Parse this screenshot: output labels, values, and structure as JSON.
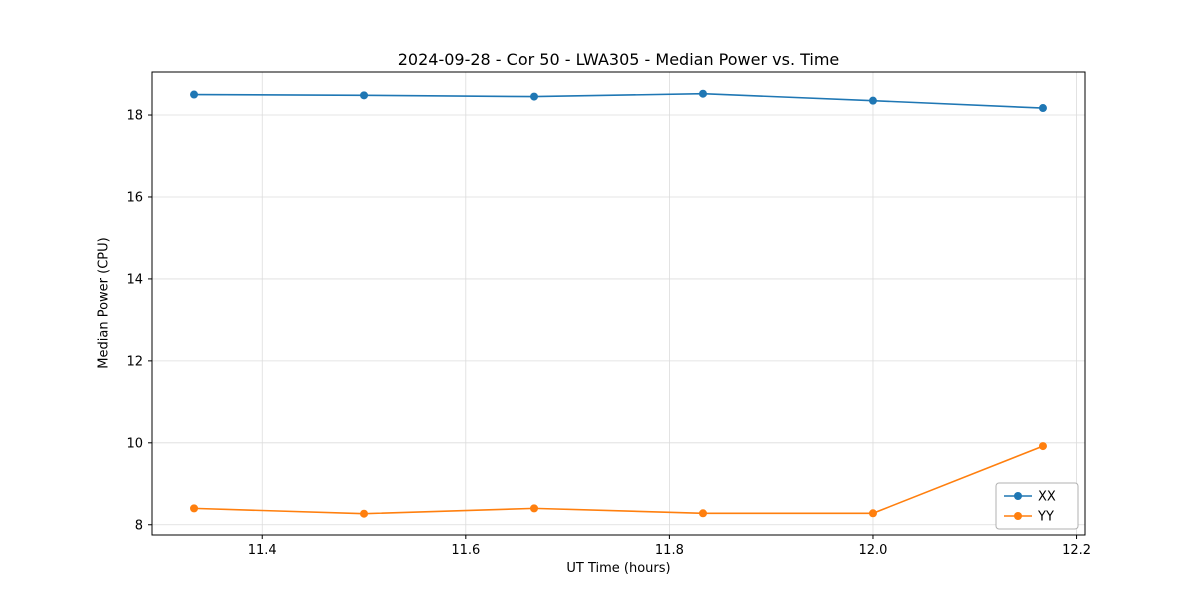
{
  "chart_data": {
    "type": "line",
    "title": "2024-09-28 - Cor 50 - LWA305 - Median Power vs. Time",
    "xlabel": "UT Time (hours)",
    "ylabel": "Median Power (CPU)",
    "x": [
      11.333,
      11.5,
      11.667,
      11.833,
      12.0,
      12.167
    ],
    "series": [
      {
        "name": "XX",
        "color": "#1f77b4",
        "values": [
          18.5,
          18.48,
          18.45,
          18.52,
          18.35,
          18.17
        ]
      },
      {
        "name": "YY",
        "color": "#ff7f0e",
        "values": [
          8.4,
          8.27,
          8.4,
          8.28,
          8.28,
          9.92
        ]
      }
    ],
    "xlim": [
      11.2917,
      12.2083
    ],
    "ylim": [
      7.75,
      19.05
    ],
    "xticks": [
      11.4,
      11.6,
      11.8,
      12.0,
      12.2
    ],
    "yticks": [
      8,
      10,
      12,
      14,
      16,
      18
    ],
    "grid": true,
    "legend_position": "lower right",
    "colors": {
      "grid": "#dcdcdc",
      "spine": "#000000",
      "legend_border": "#b0b0b0",
      "background": "#ffffff"
    }
  }
}
